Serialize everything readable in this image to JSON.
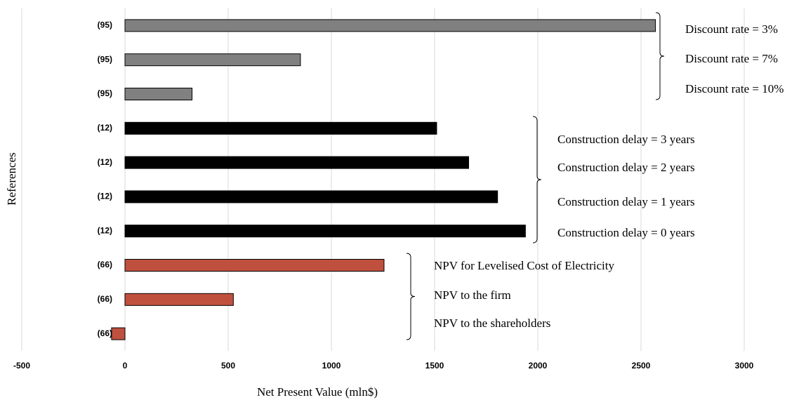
{
  "chart_data": {
    "type": "bar",
    "orientation": "horizontal",
    "xlabel": "Net Present Value (mln$)",
    "ylabel": "References",
    "categories": [
      "(95)",
      "(95)",
      "(95)",
      "(12)",
      "(12)",
      "(12)",
      "(12)",
      "(66)",
      "(66)",
      "(66)"
    ],
    "values": [
      2570,
      850,
      325,
      1510,
      1665,
      1805,
      1940,
      1255,
      525,
      -65
    ],
    "colors": [
      "#808080",
      "#808080",
      "#808080",
      "#000000",
      "#000000",
      "#000000",
      "#000000",
      "#c0503e",
      "#c0503e",
      "#c0503e"
    ],
    "xlim": [
      -500,
      3000
    ],
    "xticks": [
      -500,
      0,
      500,
      1000,
      1500,
      2000,
      2500,
      3000
    ],
    "grid": true,
    "annotations": [
      {
        "labels": [
          "Discount rate = 3%",
          "Discount rate = 7%",
          "Discount rate = 10%"
        ]
      },
      {
        "labels": [
          "Construction delay = 3 years",
          "Construction delay = 2 years",
          "Construction delay = 1 years",
          "Construction delay = 0 years"
        ]
      },
      {
        "labels": [
          "NPV for Levelised Cost of Electricity",
          "NPV to the firm",
          "NPV to the shareholders"
        ]
      }
    ]
  }
}
